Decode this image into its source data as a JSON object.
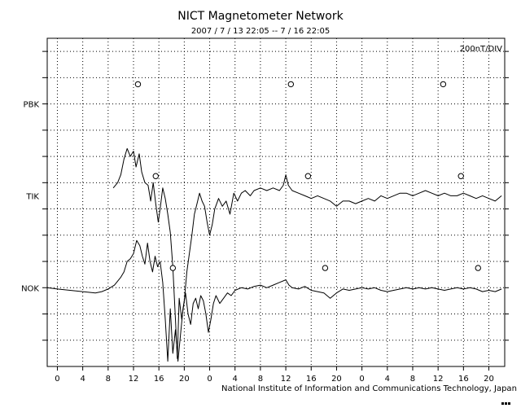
{
  "chart_data": {
    "type": "line",
    "title": "NICT Magnetometer Network",
    "subtitle": "2007 / 7 / 13   22:05 -- 7 / 16   22:05",
    "scale_label": "200nT/DIV",
    "x_ticks": [
      "0",
      "4",
      "8",
      "12",
      "16",
      "20",
      "0",
      "4",
      "8",
      "12",
      "16",
      "20",
      "0",
      "4",
      "8",
      "12",
      "16",
      "20"
    ],
    "x_tick_hours": [
      0,
      4,
      8,
      12,
      16,
      20,
      24,
      28,
      32,
      36,
      40,
      44,
      48,
      52,
      56,
      60,
      64,
      68
    ],
    "x_range_hours": [
      -1.6,
      70.5
    ],
    "y_range_div": [
      0,
      12.5
    ],
    "grid": true,
    "stations": [
      {
        "name": "PBK",
        "baseline_div": 10,
        "midnight_markers_hours": [
          12.7,
          36.8,
          60.8
        ],
        "trace": []
      },
      {
        "name": "TIK",
        "baseline_div": 6.5,
        "midnight_markers_hours": [
          15.5,
          39.5,
          63.6
        ],
        "trace": [
          [
            8.8,
            6.8
          ],
          [
            9.5,
            7.0
          ],
          [
            10,
            7.3
          ],
          [
            10.5,
            7.9
          ],
          [
            11,
            8.3
          ],
          [
            11.5,
            8.0
          ],
          [
            12,
            8.2
          ],
          [
            12.4,
            7.6
          ],
          [
            12.9,
            8.1
          ],
          [
            13.3,
            7.4
          ],
          [
            13.8,
            7.0
          ],
          [
            14.3,
            6.9
          ],
          [
            14.7,
            6.3
          ],
          [
            15.1,
            7.0
          ],
          [
            15.5,
            6.2
          ],
          [
            15.9,
            5.5
          ],
          [
            16.2,
            6.0
          ],
          [
            16.6,
            6.8
          ],
          [
            17.0,
            6.4
          ],
          [
            17.4,
            5.8
          ],
          [
            17.8,
            5.1
          ],
          [
            18.2,
            3.8
          ],
          [
            18.6,
            1.8
          ],
          [
            18.9,
            0.3
          ],
          [
            19.2,
            2.6
          ],
          [
            19.6,
            1.8
          ],
          [
            20.0,
            2.5
          ],
          [
            20.4,
            3.6
          ],
          [
            20.8,
            4.3
          ],
          [
            21.2,
            5.0
          ],
          [
            21.6,
            5.8
          ],
          [
            22.0,
            6.2
          ],
          [
            22.4,
            6.6
          ],
          [
            22.8,
            6.3
          ],
          [
            23.2,
            6.1
          ],
          [
            23.6,
            5.5
          ],
          [
            24.0,
            5.0
          ],
          [
            24.4,
            5.4
          ],
          [
            24.8,
            6.0
          ],
          [
            25.4,
            6.4
          ],
          [
            26.0,
            6.1
          ],
          [
            26.6,
            6.3
          ],
          [
            27.2,
            5.8
          ],
          [
            27.8,
            6.6
          ],
          [
            28.4,
            6.3
          ],
          [
            29.0,
            6.6
          ],
          [
            29.6,
            6.7
          ],
          [
            30.4,
            6.5
          ],
          [
            31.0,
            6.7
          ],
          [
            32.0,
            6.8
          ],
          [
            33.0,
            6.7
          ],
          [
            34.0,
            6.8
          ],
          [
            35.0,
            6.7
          ],
          [
            35.6,
            6.9
          ],
          [
            36.0,
            7.3
          ],
          [
            36.4,
            6.9
          ],
          [
            37.0,
            6.7
          ],
          [
            38.0,
            6.6
          ],
          [
            39.0,
            6.5
          ],
          [
            40.0,
            6.4
          ],
          [
            41.0,
            6.5
          ],
          [
            42.0,
            6.4
          ],
          [
            43.0,
            6.3
          ],
          [
            44.0,
            6.1
          ],
          [
            45.0,
            6.3
          ],
          [
            46.0,
            6.3
          ],
          [
            47.0,
            6.2
          ],
          [
            48.0,
            6.3
          ],
          [
            49.0,
            6.4
          ],
          [
            50.0,
            6.3
          ],
          [
            51.0,
            6.5
          ],
          [
            52.0,
            6.4
          ],
          [
            53.0,
            6.5
          ],
          [
            54.0,
            6.6
          ],
          [
            55.0,
            6.6
          ],
          [
            56.0,
            6.5
          ],
          [
            57.0,
            6.6
          ],
          [
            58.0,
            6.7
          ],
          [
            59.0,
            6.6
          ],
          [
            60.0,
            6.5
          ],
          [
            61.0,
            6.6
          ],
          [
            62.0,
            6.5
          ],
          [
            63.0,
            6.5
          ],
          [
            64.0,
            6.6
          ],
          [
            65.0,
            6.5
          ],
          [
            66.0,
            6.4
          ],
          [
            67.0,
            6.5
          ],
          [
            68.0,
            6.4
          ],
          [
            69.0,
            6.3
          ],
          [
            70.0,
            6.5
          ]
        ]
      },
      {
        "name": "NOK",
        "baseline_div": 3,
        "midnight_markers_hours": [
          18.2,
          42.2,
          66.3
        ],
        "trace": [
          [
            -1.6,
            3.0
          ],
          [
            0,
            2.95
          ],
          [
            2,
            2.9
          ],
          [
            4,
            2.85
          ],
          [
            6,
            2.8
          ],
          [
            7,
            2.85
          ],
          [
            8,
            2.95
          ],
          [
            9,
            3.1
          ],
          [
            10,
            3.4
          ],
          [
            10.5,
            3.6
          ],
          [
            11,
            4.0
          ],
          [
            11.5,
            4.1
          ],
          [
            12,
            4.3
          ],
          [
            12.5,
            4.8
          ],
          [
            13,
            4.6
          ],
          [
            13.4,
            4.2
          ],
          [
            13.8,
            3.9
          ],
          [
            14.2,
            4.7
          ],
          [
            14.6,
            4.0
          ],
          [
            15,
            3.6
          ],
          [
            15.4,
            4.2
          ],
          [
            15.8,
            3.8
          ],
          [
            16.2,
            4.0
          ],
          [
            16.6,
            3.2
          ],
          [
            17.0,
            1.8
          ],
          [
            17.4,
            0.2
          ],
          [
            17.8,
            2.2
          ],
          [
            18.2,
            0.5
          ],
          [
            18.6,
            1.4
          ],
          [
            19.0,
            0.2
          ],
          [
            19.4,
            1.2
          ],
          [
            19.8,
            2.2
          ],
          [
            20.2,
            2.8
          ],
          [
            20.6,
            2.0
          ],
          [
            21.0,
            1.6
          ],
          [
            21.4,
            2.4
          ],
          [
            21.8,
            2.6
          ],
          [
            22.2,
            2.2
          ],
          [
            22.6,
            2.7
          ],
          [
            23.0,
            2.5
          ],
          [
            23.4,
            2.0
          ],
          [
            23.8,
            1.3
          ],
          [
            24.2,
            1.8
          ],
          [
            24.6,
            2.4
          ],
          [
            25.0,
            2.7
          ],
          [
            25.6,
            2.4
          ],
          [
            26.2,
            2.6
          ],
          [
            26.8,
            2.8
          ],
          [
            27.4,
            2.7
          ],
          [
            28.0,
            2.9
          ],
          [
            29,
            3.0
          ],
          [
            30,
            2.95
          ],
          [
            31,
            3.05
          ],
          [
            32,
            3.1
          ],
          [
            33,
            3.0
          ],
          [
            34,
            3.1
          ],
          [
            35,
            3.2
          ],
          [
            36,
            3.3
          ],
          [
            36.5,
            3.1
          ],
          [
            37,
            3.0
          ],
          [
            38,
            2.95
          ],
          [
            39,
            3.05
          ],
          [
            40,
            2.9
          ],
          [
            41,
            2.85
          ],
          [
            42,
            2.8
          ],
          [
            43,
            2.6
          ],
          [
            44,
            2.8
          ],
          [
            45,
            2.95
          ],
          [
            46,
            2.9
          ],
          [
            47,
            2.95
          ],
          [
            48,
            3.0
          ],
          [
            49,
            2.95
          ],
          [
            50,
            3.0
          ],
          [
            51,
            2.9
          ],
          [
            52,
            2.85
          ],
          [
            53,
            2.9
          ],
          [
            54,
            2.95
          ],
          [
            55,
            3.0
          ],
          [
            56,
            2.95
          ],
          [
            57,
            3.0
          ],
          [
            58,
            2.95
          ],
          [
            59,
            3.0
          ],
          [
            60,
            2.95
          ],
          [
            61,
            2.9
          ],
          [
            62,
            2.95
          ],
          [
            63,
            3.0
          ],
          [
            64,
            2.95
          ],
          [
            65,
            3.0
          ],
          [
            66,
            2.95
          ],
          [
            67,
            2.85
          ],
          [
            68,
            2.9
          ],
          [
            69,
            2.85
          ],
          [
            70,
            2.95
          ]
        ]
      }
    ]
  },
  "footer": {
    "credit": "National Institute of Information and Communications Technology, Japan"
  }
}
